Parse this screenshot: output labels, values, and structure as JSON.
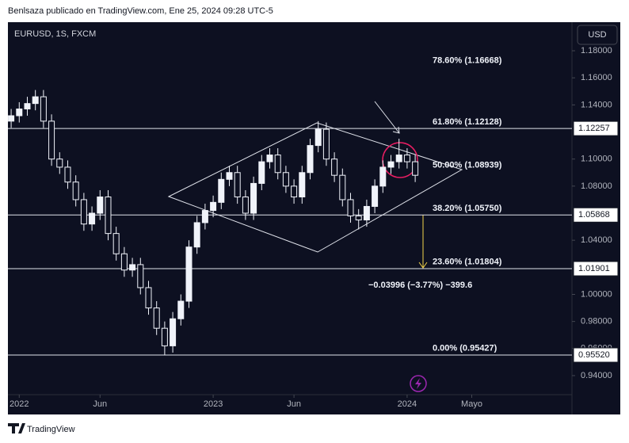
{
  "header": {
    "byline": "Benlsaza publicado en TradingView.com, Ene 25, 2024 09:28 UTC-5",
    "symbol": "EURUSD, 1S, FXCM",
    "currency": "USD"
  },
  "chart_data": {
    "type": "candlestick",
    "x": [
      -0.5,
      0,
      0.5,
      1,
      1.5,
      2,
      2.5,
      3,
      3.5,
      4,
      4.5,
      5,
      5.5,
      6,
      6.5,
      7,
      7.5,
      8,
      8.5,
      9,
      9.5,
      10,
      10.5,
      11,
      11.5,
      12,
      12.5,
      13,
      13.5,
      14,
      14.5,
      15,
      15.5,
      16,
      16.5,
      17,
      17.5,
      18,
      18.5,
      19,
      19.5,
      20,
      20.5,
      21,
      21.5,
      22,
      22.5,
      23,
      23.5,
      24,
      24.5
    ],
    "open": [
      1.128,
      1.132,
      1.137,
      1.141,
      1.146,
      1.128,
      1.1,
      1.094,
      1.083,
      1.07,
      1.052,
      1.06,
      1.072,
      1.045,
      1.03,
      1.018,
      1.022,
      1.005,
      0.99,
      0.975,
      0.962,
      0.982,
      0.995,
      1.035,
      1.053,
      1.062,
      1.068,
      1.085,
      1.09,
      1.072,
      1.06,
      1.082,
      1.098,
      1.103,
      1.09,
      1.08,
      1.072,
      1.09,
      1.11,
      1.122,
      1.1,
      1.088,
      1.07,
      1.058,
      1.055,
      1.065,
      1.08,
      1.094,
      1.098,
      1.103,
      1.098
    ],
    "high": [
      1.137,
      1.142,
      1.146,
      1.151,
      1.151,
      1.133,
      1.105,
      1.099,
      1.088,
      1.075,
      1.065,
      1.077,
      1.077,
      1.05,
      1.035,
      1.027,
      1.027,
      1.01,
      0.995,
      0.98,
      0.987,
      1.0,
      1.04,
      1.058,
      1.067,
      1.073,
      1.09,
      1.095,
      1.095,
      1.077,
      1.087,
      1.103,
      1.108,
      1.108,
      1.095,
      1.085,
      1.095,
      1.115,
      1.128,
      1.127,
      1.105,
      1.093,
      1.075,
      1.063,
      1.07,
      1.085,
      1.099,
      1.103,
      1.115,
      1.108,
      1.103
    ],
    "low": [
      1.123,
      1.127,
      1.132,
      1.136,
      1.123,
      1.095,
      1.089,
      1.078,
      1.065,
      1.047,
      1.047,
      1.055,
      1.04,
      1.025,
      1.013,
      1.013,
      1.0,
      0.985,
      0.97,
      0.955,
      0.957,
      0.977,
      0.99,
      1.03,
      1.048,
      1.057,
      1.063,
      1.08,
      1.067,
      1.055,
      1.055,
      1.077,
      1.093,
      1.085,
      1.075,
      1.067,
      1.067,
      1.085,
      1.105,
      1.095,
      1.083,
      1.065,
      1.053,
      1.048,
      1.05,
      1.06,
      1.075,
      1.089,
      1.093,
      1.093,
      1.083
    ],
    "close": [
      1.132,
      1.137,
      1.141,
      1.146,
      1.128,
      1.1,
      1.094,
      1.083,
      1.07,
      1.052,
      1.06,
      1.072,
      1.045,
      1.03,
      1.018,
      1.022,
      1.005,
      0.99,
      0.975,
      0.962,
      0.982,
      0.995,
      1.035,
      1.053,
      1.062,
      1.068,
      1.085,
      1.09,
      1.072,
      1.06,
      1.082,
      1.098,
      1.103,
      1.09,
      1.08,
      1.072,
      1.09,
      1.11,
      1.122,
      1.1,
      1.088,
      1.07,
      1.058,
      1.055,
      1.065,
      1.08,
      1.094,
      1.098,
      1.103,
      1.098,
      1.088
    ],
    "up_color": "#f0f3fa",
    "down_color": "#0d1021",
    "xlim": [
      -0.7,
      34.2
    ],
    "xticks": [
      {
        "value": 0,
        "label": "2022"
      },
      {
        "value": 5,
        "label": "Jun"
      },
      {
        "value": 12,
        "label": "2023"
      },
      {
        "value": 17,
        "label": "Jun"
      },
      {
        "value": 24,
        "label": "2024"
      },
      {
        "value": 28,
        "label": "Mayo"
      }
    ],
    "ylim": [
      0.9113,
      1.2011
    ],
    "yticks": [
      {
        "value": 1.18,
        "label": "1.18000"
      },
      {
        "value": 1.16,
        "label": "1.16000"
      },
      {
        "value": 1.14,
        "label": "1.14000"
      },
      {
        "value": 1.1,
        "label": "1.10000"
      },
      {
        "value": 1.08,
        "label": "1.08000"
      },
      {
        "value": 1.04,
        "label": "1.04000"
      },
      {
        "value": 1,
        "label": "1.00000"
      },
      {
        "value": 0.98,
        "label": "0.98000"
      },
      {
        "value": 0.96,
        "label": "0.96000"
      },
      {
        "value": 0.94,
        "label": "0.94000"
      }
    ],
    "levels": [
      {
        "value": 1.12257,
        "label": "1.12257"
      },
      {
        "value": 1.05868,
        "label": "1.05868"
      },
      {
        "value": 1.01901,
        "label": "1.01901"
      },
      {
        "value": 0.9552,
        "label": "0.95520"
      }
    ],
    "fib_labels": [
      {
        "value": 1.16668,
        "label": "78.60% (1.16668)"
      },
      {
        "value": 1.12128,
        "label": "61.80% (1.12128)"
      },
      {
        "value": 1.08939,
        "label": "50.00% (1.08939)"
      },
      {
        "value": 1.0575,
        "label": "38.20% (1.05750)"
      },
      {
        "value": 1.01804,
        "label": "23.60% (1.01804)"
      },
      {
        "value": 0.95427,
        "label": "0.00% (0.95427)"
      }
    ],
    "measure_label": "−0.03996 (−3.77%) −399.6"
  },
  "footer": {
    "brand": "TradingView"
  }
}
